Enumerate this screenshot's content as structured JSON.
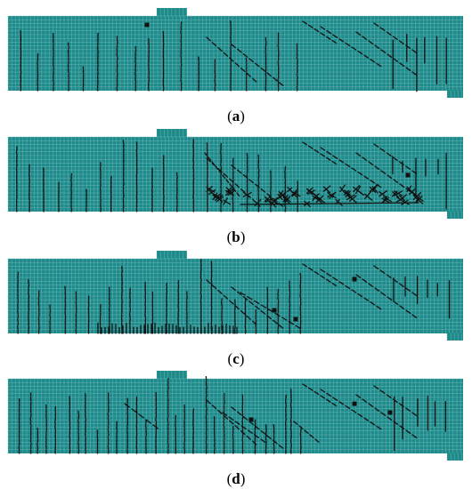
{
  "colors": {
    "beam_fill": "#1f8a8a",
    "mesh_line": "#7dc2c2",
    "crack": "#111111",
    "background": "#ffffff"
  },
  "panels": [
    {
      "label": "a",
      "caption_open": "(",
      "caption_close": ")",
      "pattern": "a"
    },
    {
      "label": "b",
      "caption_open": "(",
      "caption_close": ")",
      "pattern": "b"
    },
    {
      "label": "c",
      "caption_open": "(",
      "caption_close": ")",
      "pattern": "c"
    },
    {
      "label": "d",
      "caption_open": "(",
      "caption_close": ")",
      "pattern": "d"
    }
  ]
}
